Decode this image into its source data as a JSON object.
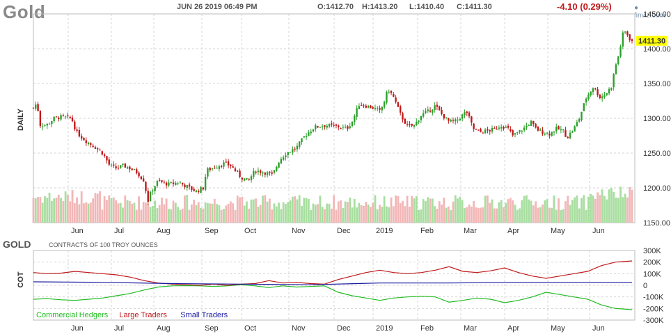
{
  "header": {
    "symbol": "Gold",
    "datetime": "JUN 26 2019 06:49 PM",
    "open": "O:1412.70",
    "high": "H:1413.20",
    "low": "L:1410.40",
    "close": "C:1411.30",
    "change": "-4.10 (0.29%)",
    "watermark": "finviz.com"
  },
  "colors": {
    "up": "#2ca02c",
    "down": "#c0191b",
    "vol_up": "#a8dea0",
    "vol_down": "#f2b7b7",
    "commercial": "#22bb22",
    "large": "#c0191b",
    "small": "#1a1aa0",
    "last_price_bg": "#ffff00"
  },
  "chart_data": [
    {
      "type": "candlestick",
      "title": "Gold",
      "ylabel": "DAILY",
      "ylim": [
        1150,
        1450
      ],
      "yticks": [
        "1450.00",
        "1400.00",
        "1350.00",
        "1300.00",
        "1250.00",
        "1200.00",
        "1150.00"
      ],
      "last_price": "1411.30",
      "xticks": [
        "Jun",
        "Jul",
        "Aug",
        "Sep",
        "Oct",
        "Nov",
        "Dec",
        "2019",
        "Feb",
        "Mar",
        "Apr",
        "May",
        "Jun"
      ],
      "close_path": [
        {
          "x": 0,
          "y": 1315
        },
        {
          "x": 5,
          "y": 1322
        },
        {
          "x": 10,
          "y": 1290
        },
        {
          "x": 20,
          "y": 1291
        },
        {
          "x": 30,
          "y": 1300
        },
        {
          "x": 40,
          "y": 1302
        },
        {
          "x": 55,
          "y": 1300
        },
        {
          "x": 62,
          "y": 1280
        },
        {
          "x": 75,
          "y": 1268
        },
        {
          "x": 90,
          "y": 1258
        },
        {
          "x": 100,
          "y": 1250
        },
        {
          "x": 110,
          "y": 1232
        },
        {
          "x": 120,
          "y": 1228
        },
        {
          "x": 130,
          "y": 1232
        },
        {
          "x": 140,
          "y": 1228
        },
        {
          "x": 150,
          "y": 1222
        },
        {
          "x": 160,
          "y": 1210
        },
        {
          "x": 165,
          "y": 1180
        },
        {
          "x": 170,
          "y": 1195
        },
        {
          "x": 180,
          "y": 1210
        },
        {
          "x": 195,
          "y": 1205
        },
        {
          "x": 210,
          "y": 1208
        },
        {
          "x": 225,
          "y": 1200
        },
        {
          "x": 235,
          "y": 1195
        },
        {
          "x": 245,
          "y": 1200
        },
        {
          "x": 250,
          "y": 1225
        },
        {
          "x": 262,
          "y": 1230
        },
        {
          "x": 275,
          "y": 1235
        },
        {
          "x": 285,
          "y": 1232
        },
        {
          "x": 300,
          "y": 1215
        },
        {
          "x": 310,
          "y": 1210
        },
        {
          "x": 320,
          "y": 1225
        },
        {
          "x": 335,
          "y": 1222
        },
        {
          "x": 345,
          "y": 1218
        },
        {
          "x": 355,
          "y": 1240
        },
        {
          "x": 365,
          "y": 1250
        },
        {
          "x": 380,
          "y": 1258
        },
        {
          "x": 392,
          "y": 1275
        },
        {
          "x": 405,
          "y": 1287
        },
        {
          "x": 420,
          "y": 1290
        },
        {
          "x": 440,
          "y": 1288
        },
        {
          "x": 452,
          "y": 1285
        },
        {
          "x": 460,
          "y": 1295
        },
        {
          "x": 470,
          "y": 1320
        },
        {
          "x": 480,
          "y": 1318
        },
        {
          "x": 490,
          "y": 1315
        },
        {
          "x": 500,
          "y": 1310
        },
        {
          "x": 505,
          "y": 1320
        },
        {
          "x": 512,
          "y": 1342
        },
        {
          "x": 520,
          "y": 1330
        },
        {
          "x": 530,
          "y": 1305
        },
        {
          "x": 540,
          "y": 1288
        },
        {
          "x": 550,
          "y": 1290
        },
        {
          "x": 560,
          "y": 1305
        },
        {
          "x": 570,
          "y": 1310
        },
        {
          "x": 580,
          "y": 1318
        },
        {
          "x": 590,
          "y": 1305
        },
        {
          "x": 600,
          "y": 1295
        },
        {
          "x": 610,
          "y": 1296
        },
        {
          "x": 620,
          "y": 1305
        },
        {
          "x": 625,
          "y": 1310
        },
        {
          "x": 635,
          "y": 1285
        },
        {
          "x": 645,
          "y": 1280
        },
        {
          "x": 655,
          "y": 1282
        },
        {
          "x": 665,
          "y": 1284
        },
        {
          "x": 675,
          "y": 1290
        },
        {
          "x": 685,
          "y": 1285
        },
        {
          "x": 692,
          "y": 1275
        },
        {
          "x": 700,
          "y": 1280
        },
        {
          "x": 710,
          "y": 1287
        },
        {
          "x": 718,
          "y": 1295
        },
        {
          "x": 725,
          "y": 1285
        },
        {
          "x": 735,
          "y": 1280
        },
        {
          "x": 745,
          "y": 1278
        },
        {
          "x": 755,
          "y": 1285
        },
        {
          "x": 765,
          "y": 1282
        },
        {
          "x": 770,
          "y": 1272
        },
        {
          "x": 780,
          "y": 1285
        },
        {
          "x": 788,
          "y": 1300
        },
        {
          "x": 798,
          "y": 1330
        },
        {
          "x": 808,
          "y": 1345
        },
        {
          "x": 818,
          "y": 1330
        },
        {
          "x": 826,
          "y": 1335
        },
        {
          "x": 834,
          "y": 1345
        },
        {
          "x": 840,
          "y": 1375
        },
        {
          "x": 846,
          "y": 1395
        },
        {
          "x": 850,
          "y": 1420
        },
        {
          "x": 855,
          "y": 1425
        },
        {
          "x": 860,
          "y": 1415
        },
        {
          "x": 864,
          "y": 1411.3
        }
      ]
    },
    {
      "type": "line",
      "title": "GOLD",
      "subtitle": "CONTRACTS OF 100 TROY OUNCES",
      "ylabel": "COT",
      "ylim": [
        -300000,
        300000
      ],
      "yticks": [
        "300K",
        "200K",
        "100K",
        "0",
        "-100K",
        "-200K",
        "-300K"
      ],
      "xticks": [
        "Jun",
        "Jul",
        "Aug",
        "Sep",
        "Oct",
        "Nov",
        "Dec",
        "2019",
        "Feb",
        "Mar",
        "Apr",
        "May",
        "Jun"
      ],
      "series": [
        {
          "name": "Commercial Hedgers",
          "color": "#22bb22",
          "values": [
            {
              "x": 0,
              "y": -120000
            },
            {
              "x": 20,
              "y": -115000
            },
            {
              "x": 40,
              "y": -125000
            },
            {
              "x": 60,
              "y": -130000
            },
            {
              "x": 80,
              "y": -120000
            },
            {
              "x": 100,
              "y": -110000
            },
            {
              "x": 120,
              "y": -90000
            },
            {
              "x": 140,
              "y": -70000
            },
            {
              "x": 160,
              "y": -40000
            },
            {
              "x": 180,
              "y": -15000
            },
            {
              "x": 200,
              "y": -5000
            },
            {
              "x": 220,
              "y": -3000
            },
            {
              "x": 240,
              "y": -5000
            },
            {
              "x": 260,
              "y": -10000
            },
            {
              "x": 280,
              "y": -5000
            },
            {
              "x": 300,
              "y": 5000
            },
            {
              "x": 320,
              "y": -5000
            },
            {
              "x": 340,
              "y": -20000
            },
            {
              "x": 360,
              "y": -5000
            },
            {
              "x": 380,
              "y": -15000
            },
            {
              "x": 400,
              "y": -10000
            },
            {
              "x": 420,
              "y": -5000
            },
            {
              "x": 440,
              "y": -60000
            },
            {
              "x": 460,
              "y": -90000
            },
            {
              "x": 480,
              "y": -110000
            },
            {
              "x": 500,
              "y": -130000
            },
            {
              "x": 520,
              "y": -110000
            },
            {
              "x": 540,
              "y": -100000
            },
            {
              "x": 560,
              "y": -95000
            },
            {
              "x": 580,
              "y": -100000
            },
            {
              "x": 600,
              "y": -145000
            },
            {
              "x": 620,
              "y": -130000
            },
            {
              "x": 640,
              "y": -110000
            },
            {
              "x": 660,
              "y": -120000
            },
            {
              "x": 680,
              "y": -150000
            },
            {
              "x": 700,
              "y": -130000
            },
            {
              "x": 720,
              "y": -100000
            },
            {
              "x": 740,
              "y": -60000
            },
            {
              "x": 760,
              "y": -80000
            },
            {
              "x": 780,
              "y": -100000
            },
            {
              "x": 800,
              "y": -120000
            },
            {
              "x": 820,
              "y": -170000
            },
            {
              "x": 840,
              "y": -200000
            },
            {
              "x": 864,
              "y": -210000
            }
          ]
        },
        {
          "name": "Large Traders",
          "color": "#c0191b",
          "values": [
            {
              "x": 0,
              "y": 110000
            },
            {
              "x": 20,
              "y": 100000
            },
            {
              "x": 40,
              "y": 105000
            },
            {
              "x": 60,
              "y": 120000
            },
            {
              "x": 80,
              "y": 110000
            },
            {
              "x": 100,
              "y": 100000
            },
            {
              "x": 120,
              "y": 90000
            },
            {
              "x": 140,
              "y": 70000
            },
            {
              "x": 160,
              "y": 40000
            },
            {
              "x": 180,
              "y": 20000
            },
            {
              "x": 200,
              "y": 10000
            },
            {
              "x": 220,
              "y": 5000
            },
            {
              "x": 240,
              "y": 0
            },
            {
              "x": 260,
              "y": 10000
            },
            {
              "x": 280,
              "y": 0
            },
            {
              "x": 300,
              "y": 10000
            },
            {
              "x": 320,
              "y": 15000
            },
            {
              "x": 340,
              "y": 40000
            },
            {
              "x": 360,
              "y": 20000
            },
            {
              "x": 380,
              "y": 25000
            },
            {
              "x": 400,
              "y": 15000
            },
            {
              "x": 420,
              "y": 10000
            },
            {
              "x": 440,
              "y": 50000
            },
            {
              "x": 460,
              "y": 80000
            },
            {
              "x": 480,
              "y": 110000
            },
            {
              "x": 500,
              "y": 130000
            },
            {
              "x": 520,
              "y": 110000
            },
            {
              "x": 540,
              "y": 100000
            },
            {
              "x": 560,
              "y": 110000
            },
            {
              "x": 580,
              "y": 130000
            },
            {
              "x": 600,
              "y": 160000
            },
            {
              "x": 620,
              "y": 120000
            },
            {
              "x": 640,
              "y": 110000
            },
            {
              "x": 660,
              "y": 125000
            },
            {
              "x": 680,
              "y": 150000
            },
            {
              "x": 700,
              "y": 110000
            },
            {
              "x": 720,
              "y": 80000
            },
            {
              "x": 740,
              "y": 60000
            },
            {
              "x": 760,
              "y": 80000
            },
            {
              "x": 780,
              "y": 100000
            },
            {
              "x": 800,
              "y": 120000
            },
            {
              "x": 820,
              "y": 170000
            },
            {
              "x": 840,
              "y": 200000
            },
            {
              "x": 864,
              "y": 210000
            }
          ]
        },
        {
          "name": "Small Traders",
          "color": "#1a1aa0",
          "values": [
            {
              "x": 0,
              "y": 30000
            },
            {
              "x": 100,
              "y": 25000
            },
            {
              "x": 200,
              "y": 15000
            },
            {
              "x": 300,
              "y": 10000
            },
            {
              "x": 400,
              "y": 5000
            },
            {
              "x": 500,
              "y": 20000
            },
            {
              "x": 600,
              "y": 20000
            },
            {
              "x": 700,
              "y": 25000
            },
            {
              "x": 800,
              "y": 25000
            },
            {
              "x": 864,
              "y": 25000
            }
          ]
        }
      ]
    }
  ]
}
